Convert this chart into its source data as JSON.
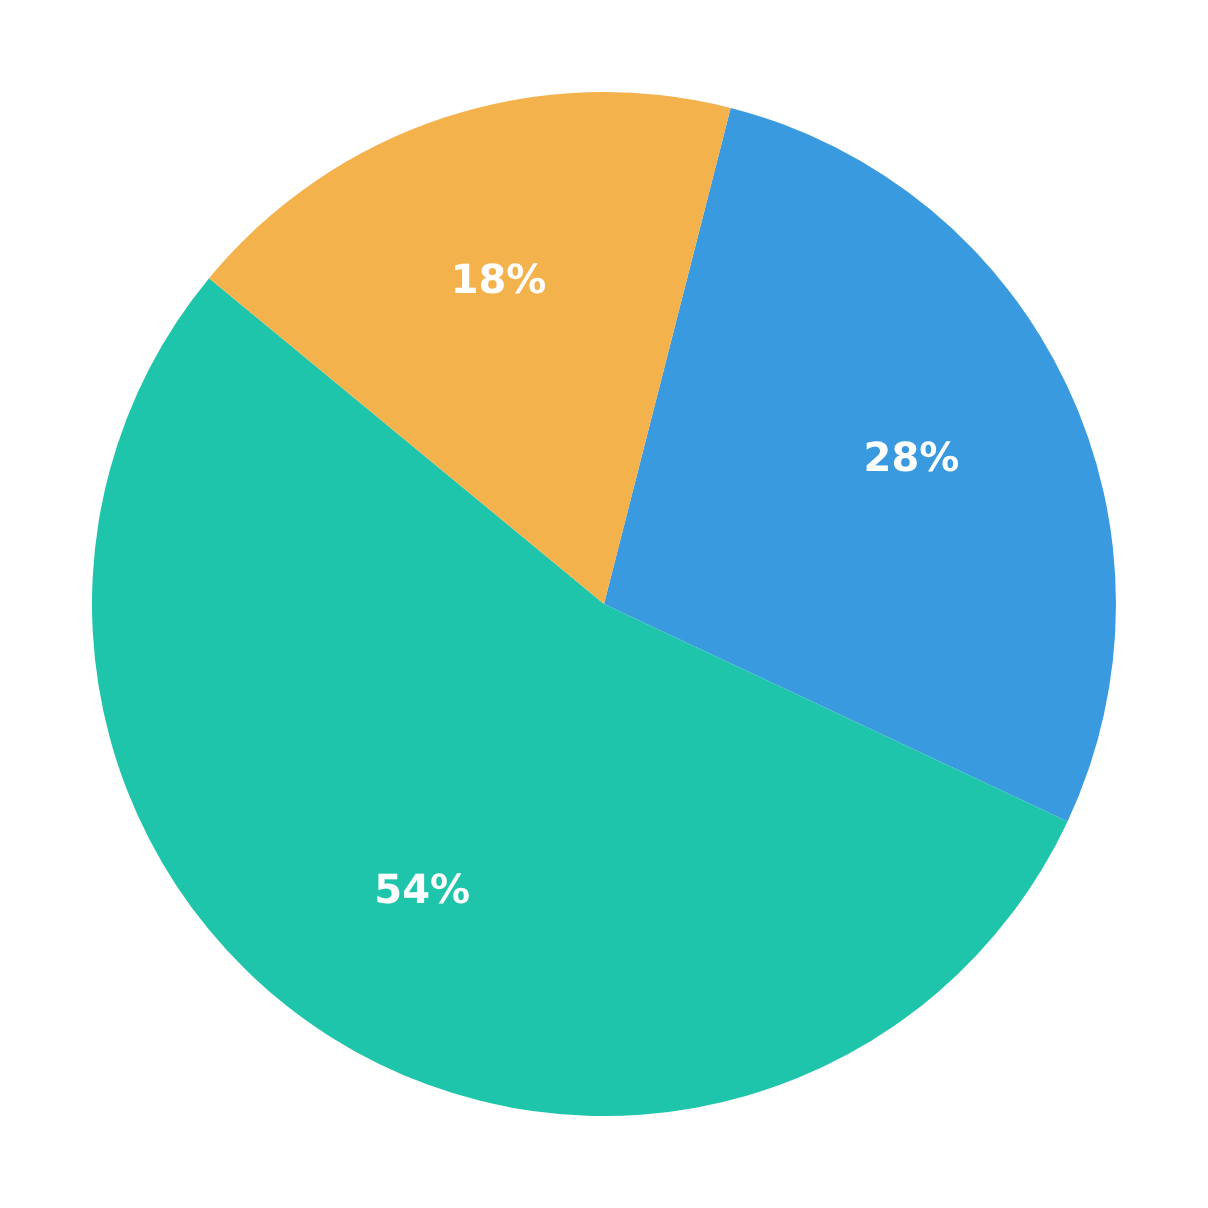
{
  "chart_data": {
    "type": "pie",
    "categories": [
      null,
      null,
      null
    ],
    "values": [
      28,
      54,
      18
    ],
    "colors": [
      "#3a9ae0",
      "#1fc5ab",
      "#f4b24c"
    ],
    "value_labels": [
      "28%",
      "54%",
      "18%"
    ],
    "legend": false
  }
}
